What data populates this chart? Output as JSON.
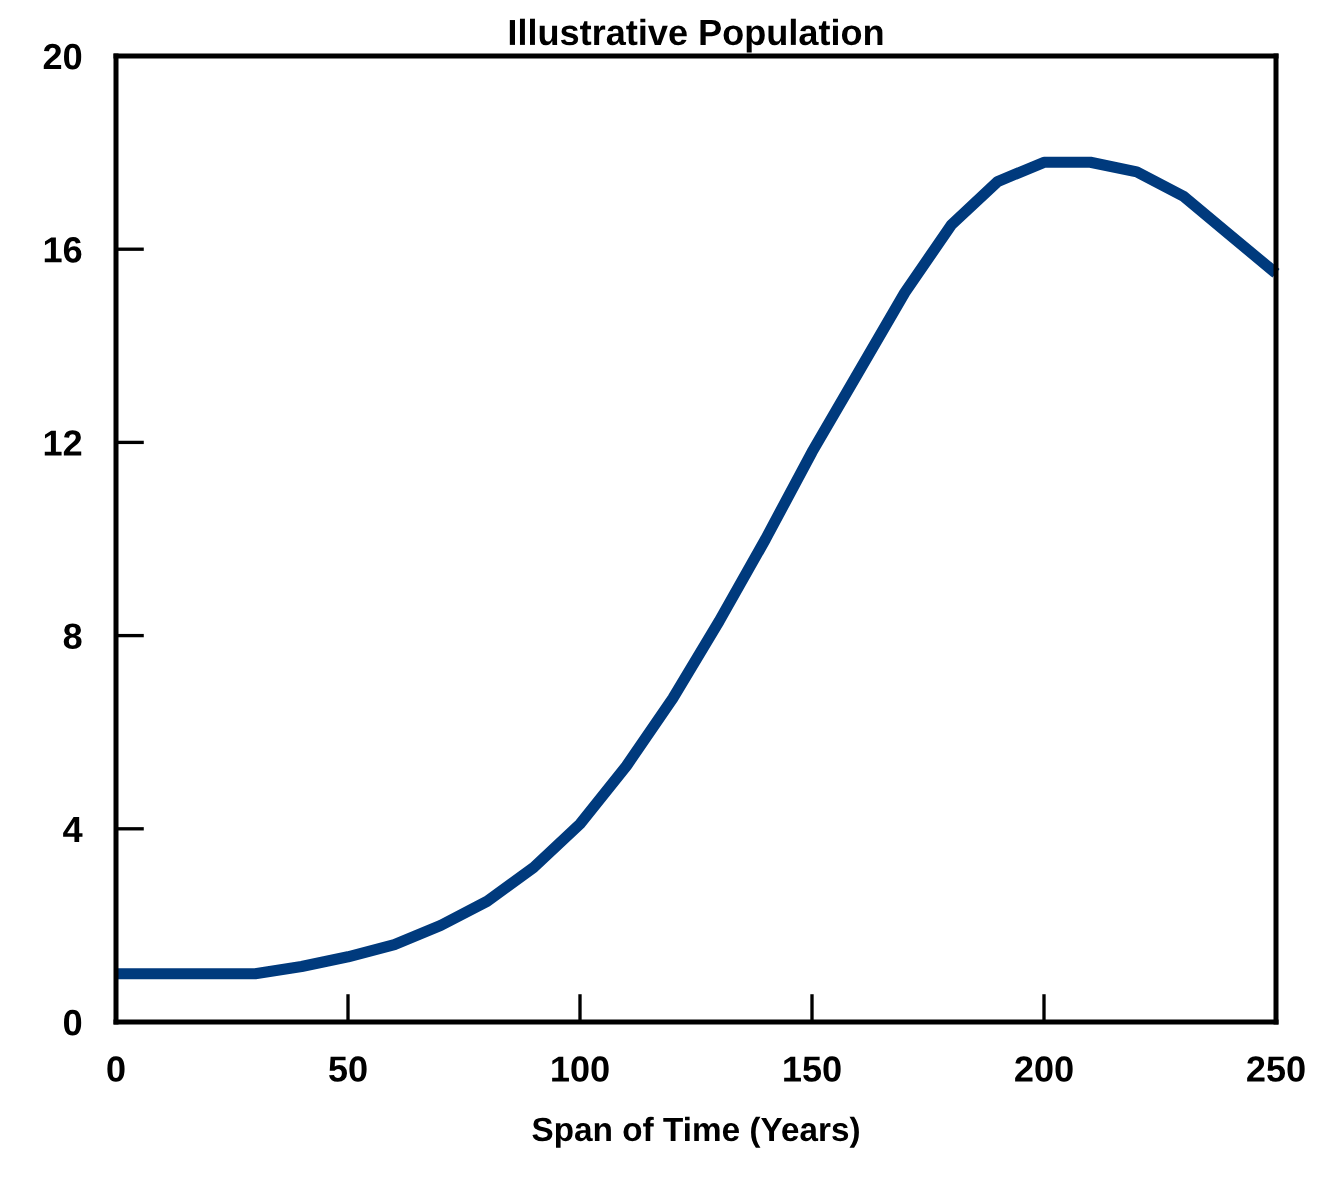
{
  "chart_data": {
    "type": "line",
    "title": "Illustrative Population",
    "xlabel": "Span of Time (Years)",
    "x": [
      0,
      10,
      20,
      30,
      40,
      50,
      60,
      70,
      80,
      90,
      100,
      110,
      120,
      130,
      140,
      150,
      160,
      170,
      180,
      190,
      200,
      210,
      220,
      230,
      240,
      250
    ],
    "series": [
      {
        "color": "#003a7d",
        "values": [
          1.0,
          1.0,
          1.0,
          1.0,
          1.15,
          1.35,
          1.6,
          2.0,
          2.5,
          3.2,
          4.1,
          5.3,
          6.7,
          8.3,
          10.0,
          11.8,
          13.45,
          15.1,
          16.5,
          17.4,
          17.8,
          17.8,
          17.6,
          17.1,
          16.3,
          15.5
        ]
      }
    ],
    "xlim": [
      0,
      250
    ],
    "ylim": [
      0,
      20
    ],
    "xticks": [
      0,
      50,
      100,
      150,
      200,
      250
    ],
    "yticks": [
      0,
      4,
      8,
      12,
      16,
      20
    ],
    "grid": false,
    "legend": false,
    "marker": "none",
    "line_style": "solid"
  }
}
